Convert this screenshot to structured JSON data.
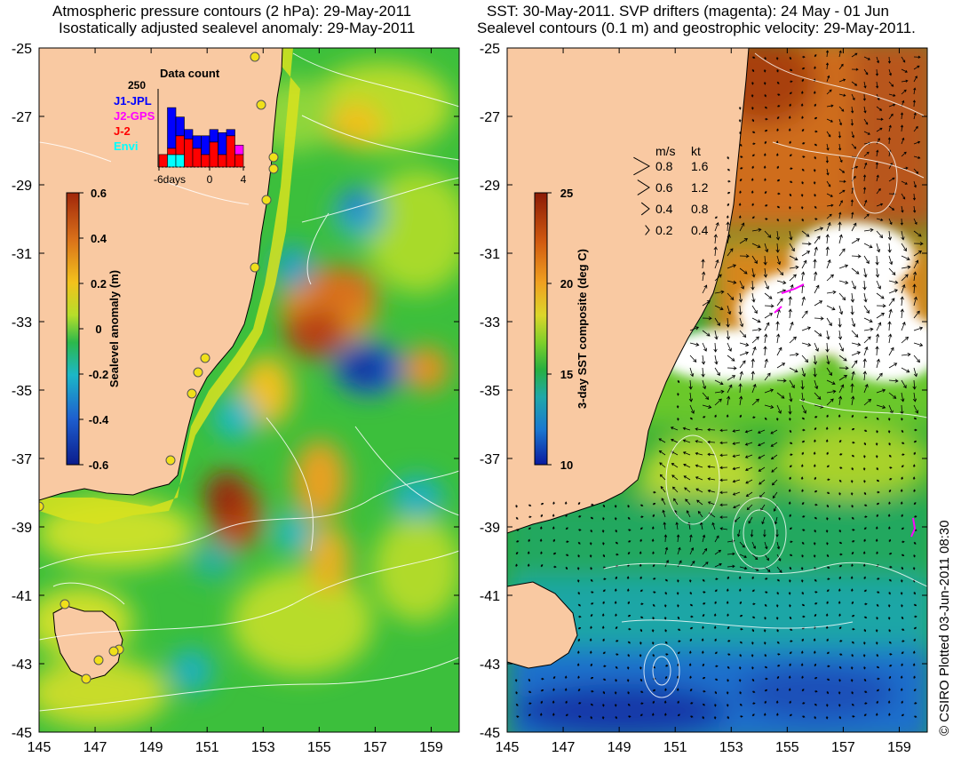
{
  "left_panel": {
    "title_line1": "Atmospheric pressure contours (2 hPa): 29-May-2011",
    "title_line2": "Isostatically adjusted sealevel anomaly: 29-May-2011",
    "colorbar": {
      "label": "Sealevel anomaly (m)",
      "ticks": [
        "0.6",
        "0.4",
        "0.2",
        "0",
        "-0.2",
        "-0.4",
        "-0.6"
      ],
      "colors": [
        "#a0260a",
        "#d9701a",
        "#f3c21c",
        "#b6de2a",
        "#2cb84b",
        "#1cb7c7",
        "#1e5fcf",
        "#0b1c8c"
      ]
    },
    "inset": {
      "title": "Data count",
      "y_max": "250",
      "legend": [
        {
          "label": "J1-JPL",
          "color": "#0000ff"
        },
        {
          "label": "J2-GPS",
          "color": "#ff00ff"
        },
        {
          "label": "J-2",
          "color": "#ff0000"
        },
        {
          "label": "Envi",
          "color": "#00ffff"
        }
      ],
      "x_ticks": [
        "-6days",
        "0",
        "4"
      ],
      "bars": [
        {
          "day": -6,
          "envi": 0,
          "j2": 40,
          "j1": 0
        },
        {
          "day": -5,
          "envi": 40,
          "j2": 20,
          "j1": 130
        },
        {
          "day": -4,
          "envi": 40,
          "j2": 60,
          "j1": 60
        },
        {
          "day": -3,
          "envi": 0,
          "j2": 90,
          "j1": 30
        },
        {
          "day": -2,
          "envi": 0,
          "j2": 60,
          "j1": 40
        },
        {
          "day": -1,
          "envi": 0,
          "j2": 40,
          "j1": 60
        },
        {
          "day": 0,
          "envi": 0,
          "j2": 80,
          "j1": 40
        },
        {
          "day": 1,
          "envi": 0,
          "j2": 40,
          "j1": 70
        },
        {
          "day": 2,
          "envi": 0,
          "j2": 100,
          "j1": 20
        },
        {
          "day": 3,
          "envi": 0,
          "j2": 40,
          "j1": 0,
          "j2gps": 30
        }
      ]
    }
  },
  "right_panel": {
    "title_line1": "SST: 30-May-2011. SVP drifters (magenta): 24 May - 01 Jun",
    "title_line2": "Sealevel contours (0.1 m) and geostrophic velocity: 29-May-2011.",
    "colorbar": {
      "label": "3-day SST composite (deg C)",
      "ticks": [
        "25",
        "20",
        "15",
        "10"
      ],
      "colors": [
        "#8b1a06",
        "#d15a10",
        "#f0a020",
        "#dcd62a",
        "#7fcf2a",
        "#28b040",
        "#20a8a8",
        "#1a78d0",
        "#0a1aa0"
      ]
    },
    "velocity_legend": {
      "header_ms": "m/s",
      "header_kt": "kt",
      "rows": [
        {
          "ms": "0.8",
          "kt": "1.6"
        },
        {
          "ms": "0.6",
          "kt": "1.2"
        },
        {
          "ms": "0.4",
          "kt": "0.8"
        },
        {
          "ms": "0.2",
          "kt": "0.4"
        }
      ]
    }
  },
  "axes": {
    "lon_ticks": [
      "145",
      "147",
      "149",
      "151",
      "153",
      "155",
      "157",
      "159"
    ],
    "lat_ticks": [
      "-25",
      "-27",
      "-29",
      "-31",
      "-33",
      "-35",
      "-37",
      "-39",
      "-41",
      "-43",
      "-45"
    ]
  },
  "credit": "© CSIRO Plotted 03-Jun-2011 08:30",
  "colors": {
    "land": "#f9c9a2",
    "sea_base": "#3cc03c",
    "sst_north": "#d77e22",
    "sst_south": "#1a7fd4",
    "drifter": "#ff00ff"
  }
}
